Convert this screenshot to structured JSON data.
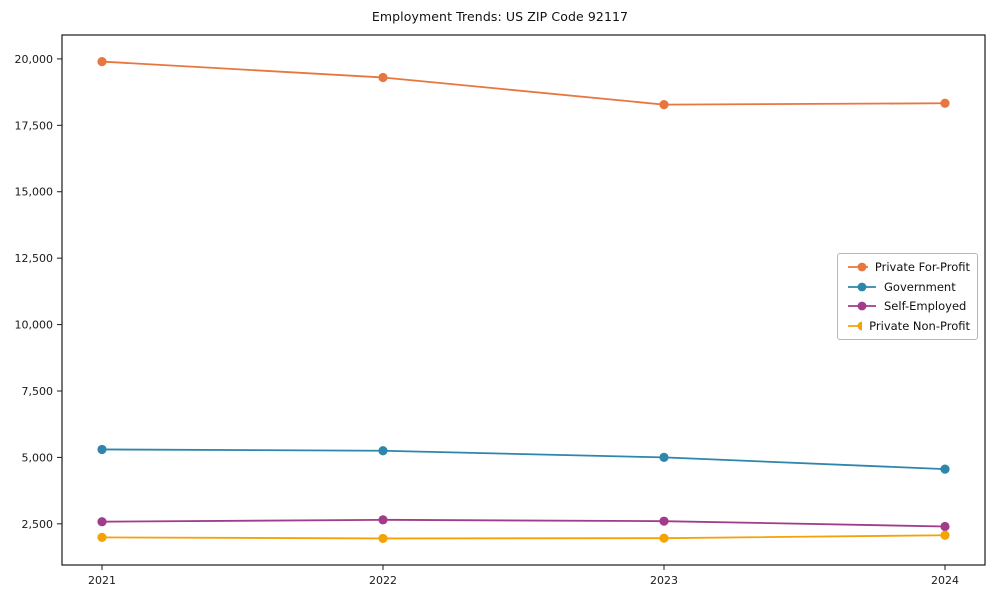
{
  "chart_data": {
    "type": "line",
    "title": "Employment Trends: US ZIP Code 92117",
    "x": [
      "2021",
      "2022",
      "2023",
      "2024"
    ],
    "series": [
      {
        "name": "Private For-Profit",
        "color": "#e8763f",
        "values": [
          19900,
          19300,
          18280,
          18330
        ]
      },
      {
        "name": "Government",
        "color": "#2e86ab",
        "values": [
          5300,
          5250,
          5000,
          4560
        ]
      },
      {
        "name": "Self-Employed",
        "color": "#a23b8a",
        "values": [
          2580,
          2650,
          2600,
          2400
        ]
      },
      {
        "name": "Private Non-Profit",
        "color": "#f4a307",
        "values": [
          1990,
          1950,
          1960,
          2070
        ]
      }
    ],
    "yticks": [
      2500,
      5000,
      7500,
      10000,
      12500,
      15000,
      17500,
      20000
    ],
    "ylim": [
      950,
      20900
    ],
    "grid": false,
    "marker": "o",
    "legend_position": "center right",
    "axis_color": "#1a1a1a"
  }
}
